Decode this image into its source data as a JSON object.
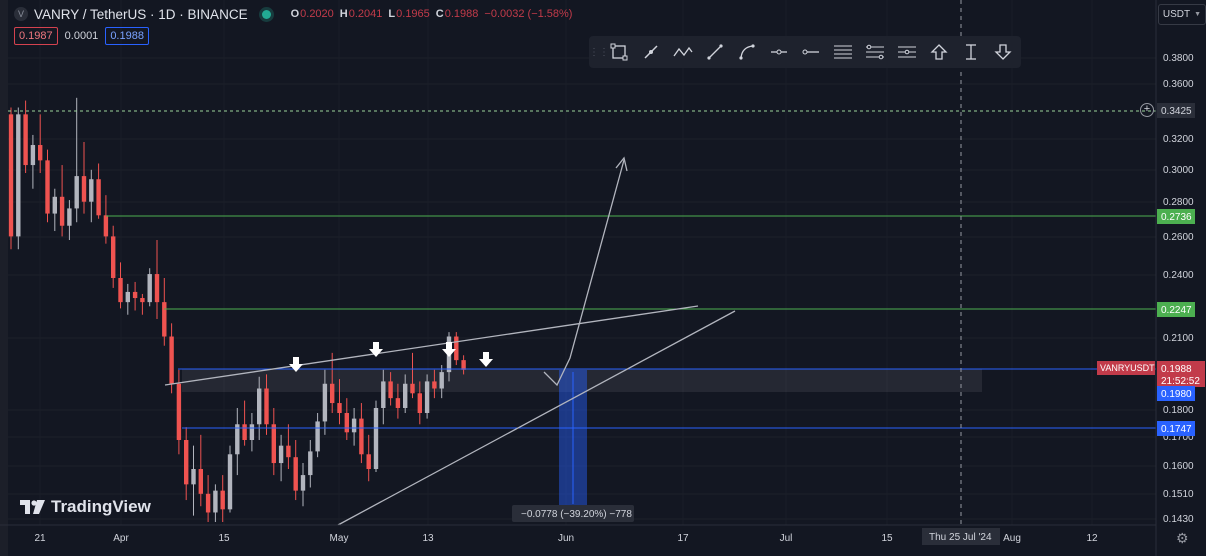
{
  "header": {
    "symbol": "VANRY / TetherUS · 1D · BINANCE",
    "symbol_icon": "V",
    "ohlc": [
      {
        "key": "O",
        "value": "0.2020"
      },
      {
        "key": "H",
        "value": "0.2041"
      },
      {
        "key": "L",
        "value": "0.1965"
      },
      {
        "key": "C",
        "value": "0.1988"
      }
    ],
    "change": "−0.0032 (−1.58%)",
    "sell_price": "0.1987",
    "spread": "0.0001",
    "buy_price": "0.1988"
  },
  "currency_button": "USDT",
  "price_scale": {
    "ticks": [
      "0.3800",
      "0.3600",
      "0.3200",
      "0.3000",
      "0.2800",
      "0.2600",
      "0.2400",
      "0.2100",
      "0.1800",
      "0.1700",
      "0.1600",
      "0.1510",
      "0.1430"
    ],
    "labels": {
      "crosshair": "0.3425",
      "green_upper": "0.2736",
      "green_lower": "0.2247",
      "symbol_tag": "VANRYUSDT",
      "last_price": "0.1988",
      "countdown": "21:52:52",
      "blue_upper": "0.1980",
      "blue_lower": "0.1747"
    }
  },
  "time_scale": {
    "ticks": [
      "21",
      "Apr",
      "15",
      "May",
      "13",
      "Jun",
      "17",
      "Jul",
      "15",
      "Aug",
      "12"
    ],
    "crosshair_label": "Thu 25 Jul '24"
  },
  "measure_label": "−0.0778 (−39.20%) −778",
  "watermark": "TradingView",
  "colors": {
    "background": "#131722",
    "up": "#b2b5be",
    "down": "#ef5350",
    "green_line": "#4caf50",
    "blue_line": "#2962ff"
  },
  "toolbar_icons": [
    "rectangle-icon",
    "trend-line-icon",
    "polyline-icon",
    "ray-icon",
    "curve-icon",
    "horizontal-ray-icon",
    "horizontal-line-icon",
    "parallel-channel-icon",
    "fib-retracement-icon",
    "fib-extension-icon",
    "arrow-up-icon",
    "price-range-icon",
    "arrow-down-icon"
  ],
  "chart_data": {
    "type": "candlestick",
    "ohlc": [
      [
        0.34,
        0.345,
        0.255,
        0.262
      ],
      [
        0.262,
        0.345,
        0.255,
        0.34
      ],
      [
        0.34,
        0.35,
        0.3,
        0.305
      ],
      [
        0.305,
        0.325,
        0.29,
        0.318
      ],
      [
        0.318,
        0.34,
        0.3,
        0.308
      ],
      [
        0.308,
        0.315,
        0.27,
        0.275
      ],
      [
        0.275,
        0.29,
        0.265,
        0.285
      ],
      [
        0.285,
        0.305,
        0.262,
        0.268
      ],
      [
        0.268,
        0.283,
        0.26,
        0.278
      ],
      [
        0.278,
        0.352,
        0.27,
        0.298
      ],
      [
        0.298,
        0.32,
        0.275,
        0.282
      ],
      [
        0.282,
        0.302,
        0.27,
        0.296
      ],
      [
        0.296,
        0.306,
        0.272,
        0.274
      ],
      [
        0.274,
        0.286,
        0.258,
        0.262
      ],
      [
        0.262,
        0.268,
        0.235,
        0.24
      ],
      [
        0.24,
        0.248,
        0.225,
        0.228
      ],
      [
        0.228,
        0.237,
        0.222,
        0.233
      ],
      [
        0.233,
        0.238,
        0.224,
        0.23
      ],
      [
        0.23,
        0.232,
        0.222,
        0.228
      ],
      [
        0.228,
        0.245,
        0.226,
        0.242
      ],
      [
        0.242,
        0.26,
        0.22,
        0.228
      ],
      [
        0.228,
        0.24,
        0.208,
        0.212
      ],
      [
        0.212,
        0.218,
        0.188,
        0.192
      ],
      [
        0.192,
        0.198,
        0.165,
        0.17
      ],
      [
        0.17,
        0.175,
        0.15,
        0.155
      ],
      [
        0.155,
        0.168,
        0.145,
        0.16
      ],
      [
        0.16,
        0.172,
        0.148,
        0.152
      ],
      [
        0.152,
        0.158,
        0.143,
        0.146
      ],
      [
        0.146,
        0.155,
        0.143,
        0.153
      ],
      [
        0.153,
        0.158,
        0.143,
        0.147
      ],
      [
        0.147,
        0.168,
        0.146,
        0.165
      ],
      [
        0.165,
        0.182,
        0.158,
        0.176
      ],
      [
        0.176,
        0.185,
        0.168,
        0.17
      ],
      [
        0.17,
        0.18,
        0.166,
        0.176
      ],
      [
        0.176,
        0.195,
        0.17,
        0.19
      ],
      [
        0.19,
        0.196,
        0.172,
        0.176
      ],
      [
        0.176,
        0.182,
        0.158,
        0.162
      ],
      [
        0.162,
        0.172,
        0.156,
        0.168
      ],
      [
        0.168,
        0.176,
        0.16,
        0.164
      ],
      [
        0.164,
        0.17,
        0.15,
        0.153
      ],
      [
        0.153,
        0.162,
        0.148,
        0.158
      ],
      [
        0.158,
        0.17,
        0.154,
        0.166
      ],
      [
        0.166,
        0.18,
        0.164,
        0.177
      ],
      [
        0.177,
        0.198,
        0.172,
        0.192
      ],
      [
        0.192,
        0.205,
        0.18,
        0.184
      ],
      [
        0.184,
        0.194,
        0.176,
        0.18
      ],
      [
        0.18,
        0.186,
        0.17,
        0.173
      ],
      [
        0.173,
        0.182,
        0.168,
        0.178
      ],
      [
        0.178,
        0.184,
        0.162,
        0.165
      ],
      [
        0.165,
        0.172,
        0.156,
        0.16
      ],
      [
        0.16,
        0.185,
        0.159,
        0.182
      ],
      [
        0.182,
        0.198,
        0.176,
        0.193
      ],
      [
        0.193,
        0.197,
        0.183,
        0.186
      ],
      [
        0.186,
        0.192,
        0.178,
        0.182
      ],
      [
        0.182,
        0.196,
        0.18,
        0.192
      ],
      [
        0.192,
        0.205,
        0.186,
        0.188
      ],
      [
        0.188,
        0.193,
        0.176,
        0.18
      ],
      [
        0.18,
        0.196,
        0.178,
        0.193
      ],
      [
        0.193,
        0.198,
        0.186,
        0.19
      ],
      [
        0.19,
        0.2,
        0.186,
        0.197
      ],
      [
        0.197,
        0.214,
        0.193,
        0.212
      ],
      [
        0.212,
        0.214,
        0.2,
        0.202
      ],
      [
        0.202,
        0.204,
        0.196,
        0.198
      ]
    ],
    "dates": {
      "first": "2024-03-19",
      "interval": "1D"
    }
  }
}
